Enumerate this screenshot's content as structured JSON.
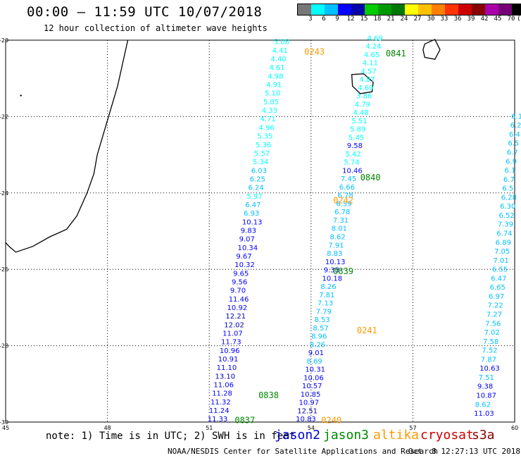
{
  "header": {
    "title": "00:00 — 11:59 UTC 10/07/2018",
    "subtitle": "12 hour collection of altimeter wave heights"
  },
  "colorbar": {
    "colors": [
      "#777777",
      "#00ffff",
      "#00c0ff",
      "#0000ff",
      "#0000aa",
      "#00cc00",
      "#009900",
      "#007700",
      "#ffff00",
      "#ffc000",
      "#ff8000",
      "#ff3300",
      "#cc0000",
      "#880000",
      "#aa00aa",
      "#770077",
      "#000000"
    ],
    "ticks": [
      "3",
      "6",
      "9",
      "12",
      "15",
      "18",
      "21",
      "24",
      "27",
      "30",
      "33",
      "36",
      "39",
      "42",
      "45",
      "70",
      "(ft)"
    ]
  },
  "map": {
    "lat_range": [
      -30,
      -20
    ],
    "lon_range": [
      45,
      60
    ],
    "lat_labels": [
      "-20",
      "-22",
      "-24",
      "-26",
      "-28",
      "-30"
    ],
    "lon_labels": [
      "45",
      "48",
      "51",
      "54",
      "57",
      "60"
    ],
    "track_times": [
      {
        "label": "0243",
        "color": "#ff9900"
      },
      {
        "label": "0841",
        "color": "#008800"
      },
      {
        "label": "0242",
        "color": "#ff9900"
      },
      {
        "label": "0840",
        "color": "#008800"
      },
      {
        "label": "0839",
        "color": "#008800"
      },
      {
        "label": "0241",
        "color": "#ff9900"
      },
      {
        "label": "0838",
        "color": "#008800"
      },
      {
        "label": "0837",
        "color": "#008800"
      },
      {
        "label": "0240",
        "color": "#ff9900"
      }
    ],
    "track_a": [
      "5.08",
      "4.41",
      "4.40",
      "4.61",
      "4.98",
      "4.91",
      "5.10",
      "5.05",
      "4.33",
      "4.71",
      "4.96",
      "5.35",
      "5.36",
      "5.57",
      "5.34",
      "6.03",
      "6.25",
      "6.24",
      "5.97",
      "6.47",
      "6.93",
      "10.13",
      "9.83",
      "9.07",
      "10.34",
      "9.67",
      "10.32",
      "9.65",
      "9.56",
      "9.70",
      "11.46",
      "10.92",
      "12.21",
      "12.02",
      "11.07",
      "11.73",
      "10.96",
      "10.91",
      "11.10",
      "13.10",
      "11.06",
      "11.28",
      "11.32",
      "11.24",
      "11.33"
    ],
    "track_b": [
      "4.69",
      "4.24",
      "4.65",
      "4.11",
      "4.57",
      "4.87",
      "4.69",
      "3.86",
      "4.79",
      "4.48",
      "5.51",
      "5.89",
      "5.45",
      "9.58",
      "5.42",
      "5.74",
      "10.46",
      "7.45",
      "6.66",
      "6.78",
      "6.59",
      "6.78",
      "7.31",
      "8.01",
      "8.62",
      "7.91",
      "8.83",
      "10.13",
      "9.33",
      "10.18",
      "8.26",
      "7.81",
      "7.13",
      "7.79",
      "8.53",
      "8.57",
      "8.96",
      "8.26",
      "9.01",
      "8.69",
      "10.31",
      "10.06",
      "10.57",
      "10.85",
      "10.97",
      "12.51",
      "10.83"
    ],
    "track_c": [
      "6.1",
      "6.2",
      "6.4",
      "6.5",
      "6.7",
      "6.9",
      "6.1",
      "6.7",
      "6.5",
      "6.28",
      "6.30",
      "6.52",
      "7.39",
      "6.74",
      "6.89",
      "7.05",
      "7.01",
      "6.55",
      "6.47",
      "6.65",
      "6.97",
      "7.22",
      "7.27",
      "7.56",
      "7.02",
      "7.58",
      "7.52",
      "7.87",
      "10.63",
      "7.51",
      "9.38",
      "10.87",
      "8.62",
      "11.03"
    ]
  },
  "footer": {
    "note": "note: 1) Time is in UTC; 2) SWH is in feet",
    "satellites": [
      {
        "name": "jason2",
        "color": "#0000cc"
      },
      {
        "name": "jason3",
        "color": "#008800"
      },
      {
        "name": "altika",
        "color": "#ff9900"
      },
      {
        "name": "cryosat",
        "color": "#cc0000"
      },
      {
        "name": "s3a",
        "color": "#880000"
      }
    ],
    "credit": "NOAA/NESDIS Center for Satellite Applications and Research",
    "timestamp": "Oct  8 12:27:13 UTC 2018"
  }
}
